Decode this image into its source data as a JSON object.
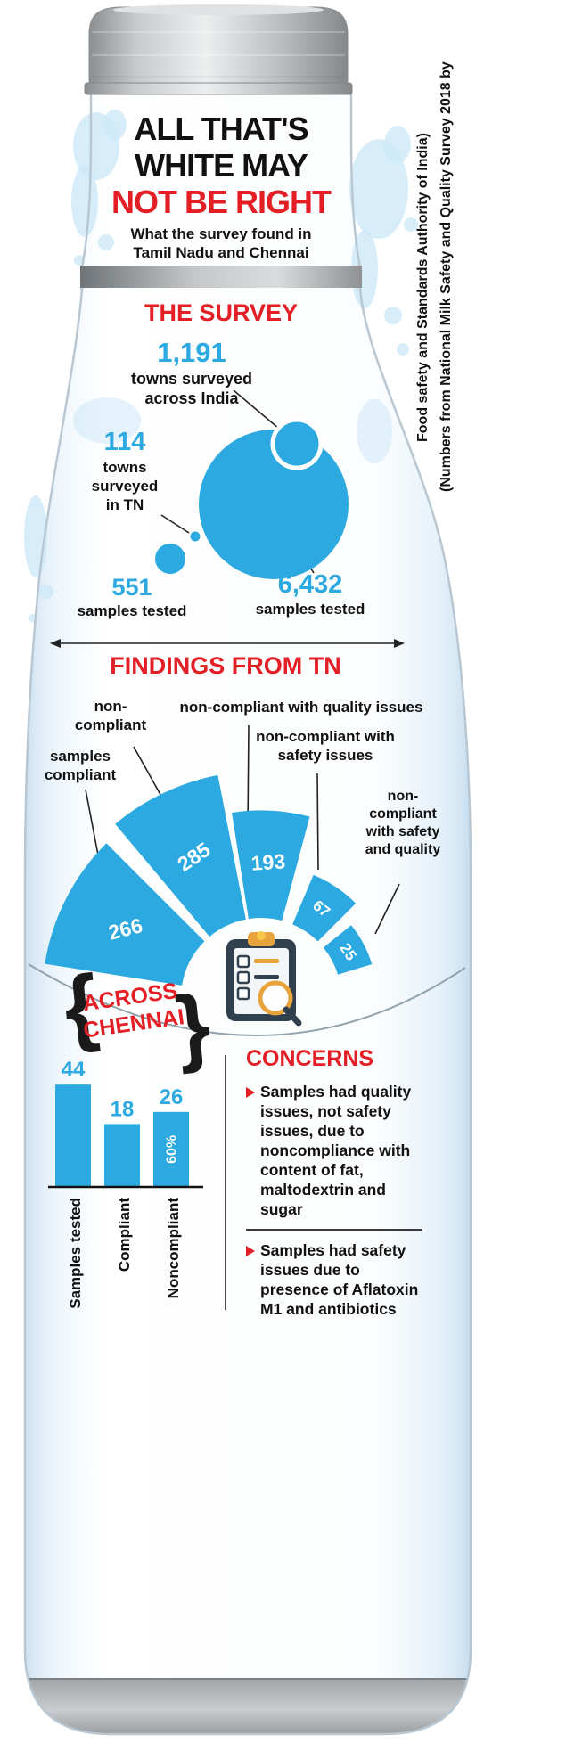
{
  "colors": {
    "blue": "#2BA9E0",
    "red": "#E31E25",
    "ink": "#111111",
    "splash": "#CDE8F8"
  },
  "source_note": {
    "line1": "(Numbers from National Milk Safety and Quality Survey 2018 by",
    "line2": "Food safety and Standards Authority of India)"
  },
  "title": {
    "line1": "ALL THAT'S",
    "line2": "WHITE MAY",
    "line3": "NOT BE RIGHT",
    "subtitle_line1": "What the survey found in",
    "subtitle_line2": "Tamil Nadu and Chennai"
  },
  "survey": {
    "heading": "THE SURVEY",
    "india_towns": {
      "value": "1,191",
      "label_line1": "towns surveyed",
      "label_line2": "across India"
    },
    "tn_towns": {
      "value": "114",
      "label_line1": "towns",
      "label_line2": "surveyed",
      "label_line3": "in TN"
    },
    "tn_samples": {
      "value": "551",
      "label": "samples tested"
    },
    "india_samples": {
      "value": "6,432",
      "label": "samples tested"
    }
  },
  "findings": {
    "heading": "FINDINGS FROM TN",
    "wedges": [
      {
        "label": "samples compliant",
        "value": 266
      },
      {
        "label": "non-compliant",
        "value": 285
      },
      {
        "label": "non-compliant with quality issues",
        "value": 193
      },
      {
        "label": "non-compliant with safety issues",
        "value": 67
      },
      {
        "label": "non-compliant with safety and quality",
        "value": 25
      }
    ]
  },
  "chennai": {
    "heading_line1": "ACROSS",
    "heading_line2": "CHENNAI",
    "bars": [
      {
        "label": "Samples tested",
        "value": 44,
        "annotation": ""
      },
      {
        "label": "Compliant",
        "value": 18,
        "annotation": ""
      },
      {
        "label": "Noncompliant",
        "value": 26,
        "annotation": "60%"
      }
    ]
  },
  "concerns": {
    "heading": "CONCERNS",
    "bullets": [
      "Samples had quality issues, not safety issues, due to noncompliance with content of fat, maltodextrin and sugar",
      "Samples had safety issues due to presence of Aflatoxin M1 and antibiotics"
    ]
  },
  "icons": {
    "center_badge": "clipboard-magnifier-icon",
    "bullet_marker": "arrow-bullet-icon"
  },
  "chart_data": [
    {
      "type": "scatter",
      "variant": "bubbles",
      "title": "THE SURVEY",
      "points": [
        {
          "label": "towns surveyed across India",
          "value": 1191
        },
        {
          "label": "towns surveyed in TN",
          "value": 114
        },
        {
          "label": "samples tested in TN",
          "value": 551
        },
        {
          "label": "samples tested across India",
          "value": 6432
        }
      ]
    },
    {
      "type": "bar",
      "variant": "radial-fan",
      "title": "FINDINGS FROM TN",
      "categories": [
        "samples compliant",
        "non-compliant",
        "non-compliant with quality issues",
        "non-compliant with safety issues",
        "non-compliant with safety and quality"
      ],
      "values": [
        266,
        285,
        193,
        67,
        25
      ]
    },
    {
      "type": "bar",
      "title": "ACROSS CHENNAI",
      "categories": [
        "Samples tested",
        "Compliant",
        "Noncompliant"
      ],
      "values": [
        44,
        18,
        26
      ],
      "annotations": [
        "",
        "",
        "60%"
      ]
    }
  ]
}
